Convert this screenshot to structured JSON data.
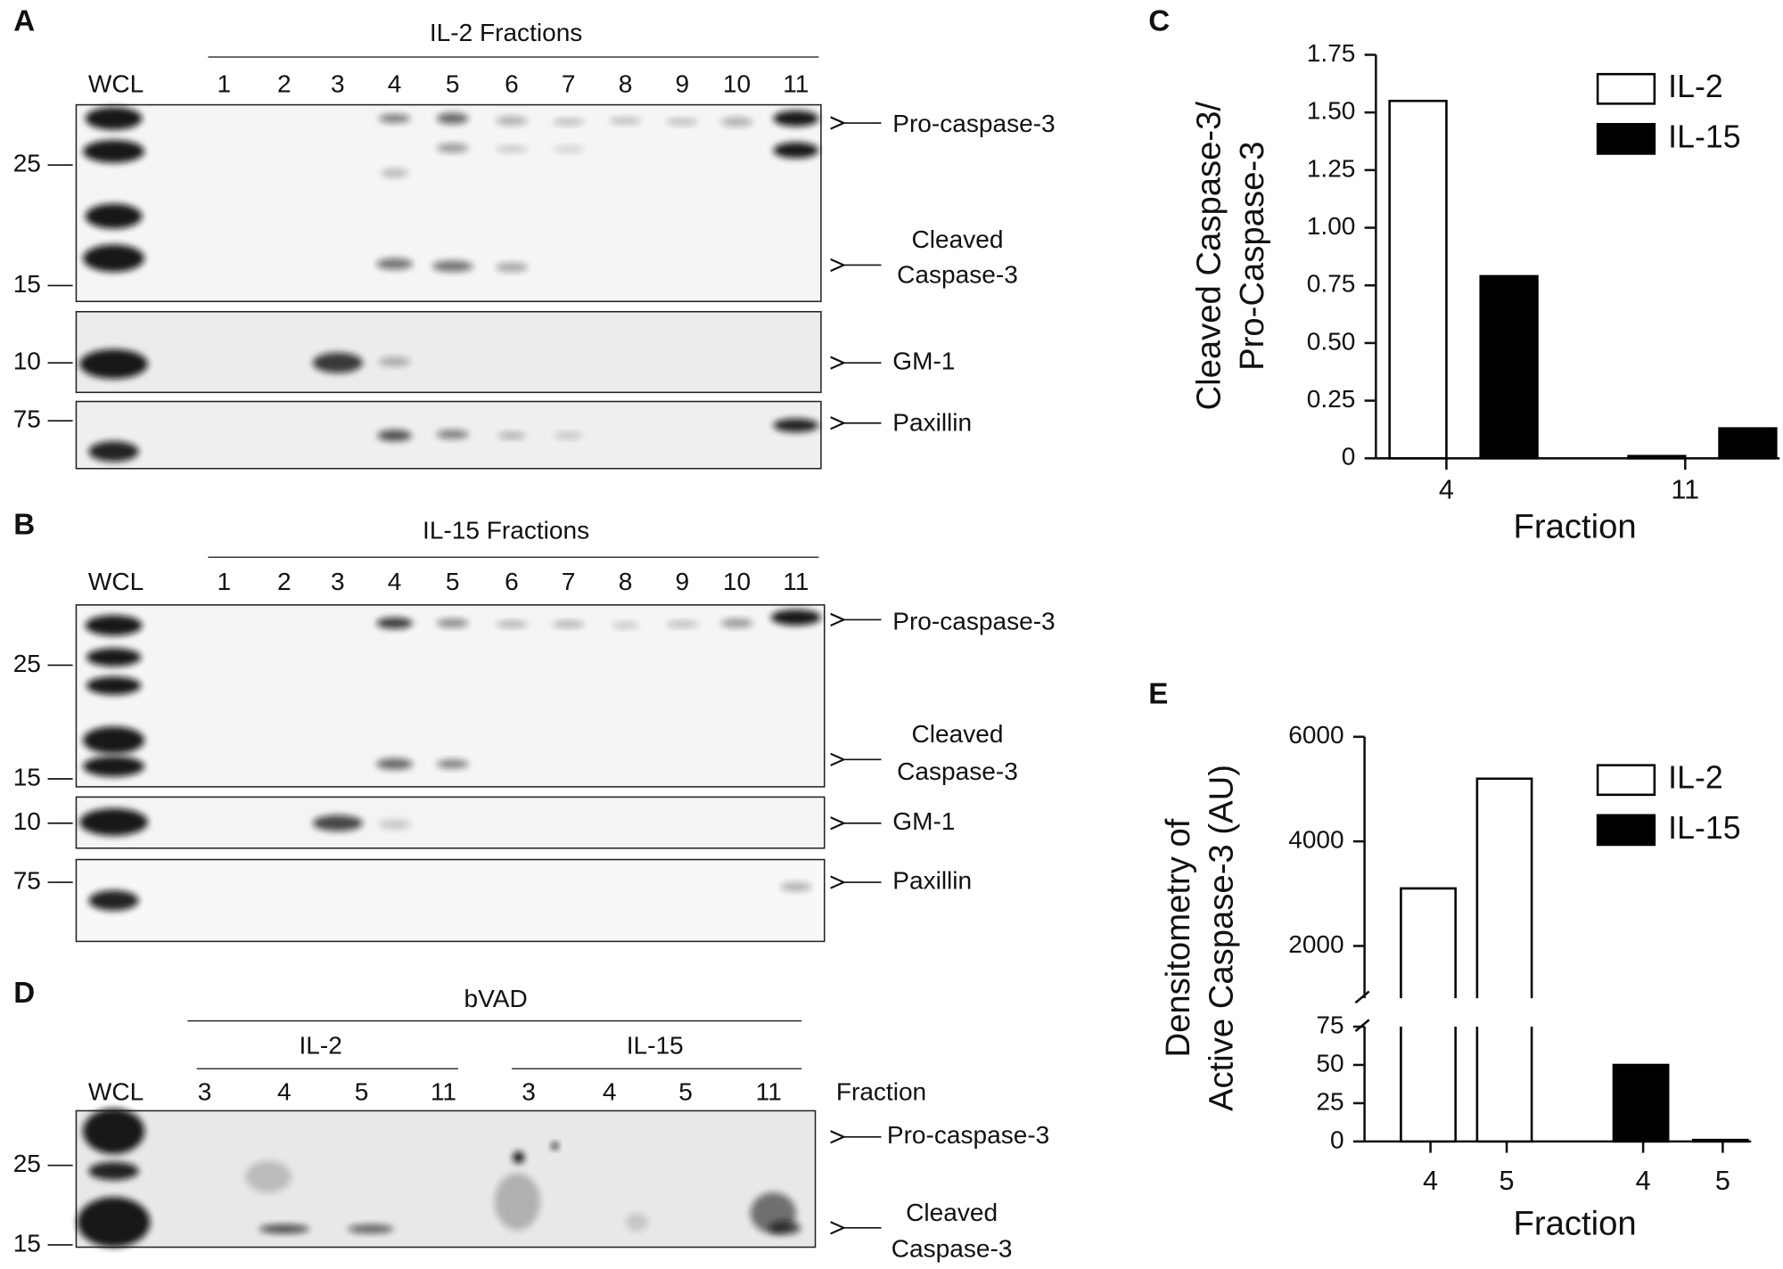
{
  "blots": [
    {
      "panel": "A",
      "title": "IL-2 Fractions",
      "wcl": "WCL",
      "lanes": [
        "1",
        "2",
        "3",
        "4",
        "5",
        "6",
        "7",
        "8",
        "9",
        "10",
        "11"
      ],
      "markers": [
        "25",
        "15",
        "10",
        "75"
      ],
      "labels": [
        "Pro-caspase-3",
        "Cleaved",
        "Caspase-3",
        "GM-1",
        "Paxillin"
      ]
    },
    {
      "panel": "B",
      "title": "IL-15 Fractions",
      "wcl": "WCL",
      "lanes": [
        "1",
        "2",
        "3",
        "4",
        "5",
        "6",
        "7",
        "8",
        "9",
        "10",
        "11"
      ],
      "markers": [
        "25",
        "15",
        "10",
        "75"
      ],
      "labels": [
        "Pro-caspase-3",
        "Cleaved",
        "Caspase-3",
        "GM-1",
        "Paxillin"
      ]
    },
    {
      "panel": "D",
      "title": "bVAD",
      "groups": [
        "IL-2",
        "IL-15"
      ],
      "wcl": "WCL",
      "lanes": [
        "3",
        "4",
        "5",
        "11",
        "3",
        "4",
        "5",
        "11"
      ],
      "lane_axis": "Fraction",
      "markers": [
        "25",
        "15"
      ],
      "labels": [
        "Pro-caspase-3",
        "Cleaved",
        "Caspase-3"
      ]
    }
  ],
  "chart_data": [
    {
      "panel": "C",
      "type": "bar",
      "ylabel": [
        "Cleaved Caspase-3/",
        "Pro-Caspase-3"
      ],
      "xlabel": "Fraction",
      "categories": [
        "4",
        "11"
      ],
      "series": [
        {
          "name": "IL-2",
          "color": "#ffffff",
          "values": [
            1.55,
            0.01
          ]
        },
        {
          "name": "IL-15",
          "color": "#000000",
          "values": [
            0.79,
            0.13
          ]
        }
      ],
      "ylim": [
        0,
        1.75
      ],
      "yticks": [
        0,
        0.25,
        {
          "value": 0.5,
          "label": "0.50"
        },
        0.75,
        {
          "value": 1,
          "label": "1.00"
        },
        1.25,
        {
          "value": 1.5,
          "label": "1.50"
        },
        1.75
      ],
      "legend": "upper right"
    },
    {
      "panel": "E",
      "type": "broken-bar",
      "ylabel": [
        "Densitometry of",
        "Active Caspase-3 (AU)"
      ],
      "xlabel": "Fraction",
      "categories": [
        "4",
        "5",
        "4",
        "5"
      ],
      "series": [
        {
          "name": "IL-2",
          "color": "#ffffff",
          "values": [
            3100,
            5200,
            null,
            null
          ]
        },
        {
          "name": "IL-15",
          "color": "#000000",
          "values": [
            null,
            null,
            50,
            1
          ]
        }
      ],
      "ylim_lower": [
        0,
        75
      ],
      "yticks_lower": [
        0,
        25,
        50,
        75
      ],
      "ylim_upper": [
        1000,
        6000
      ],
      "yticks_upper": [
        2000,
        4000,
        6000
      ],
      "legend": "upper right"
    }
  ]
}
